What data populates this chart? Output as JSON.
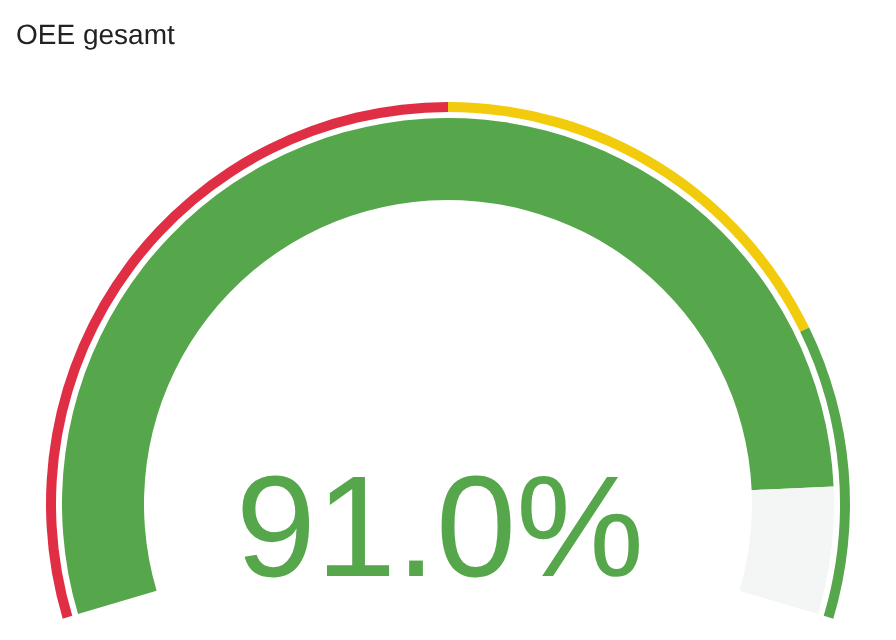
{
  "chart_data": {
    "type": "donut",
    "title": "OEE gesamt",
    "annotations": [
      "91.0%"
    ],
    "series": [
      {
        "colors": [
          "#56a64b",
          "#f4f5f5"
        ],
        "values": [
          91.0,
          9.0
        ]
      },
      {
        "colors": [
          "#e02f44",
          "#f2cc0c",
          "#56a64b"
        ],
        "values": [
          50,
          30,
          20
        ]
      }
    ]
  }
}
